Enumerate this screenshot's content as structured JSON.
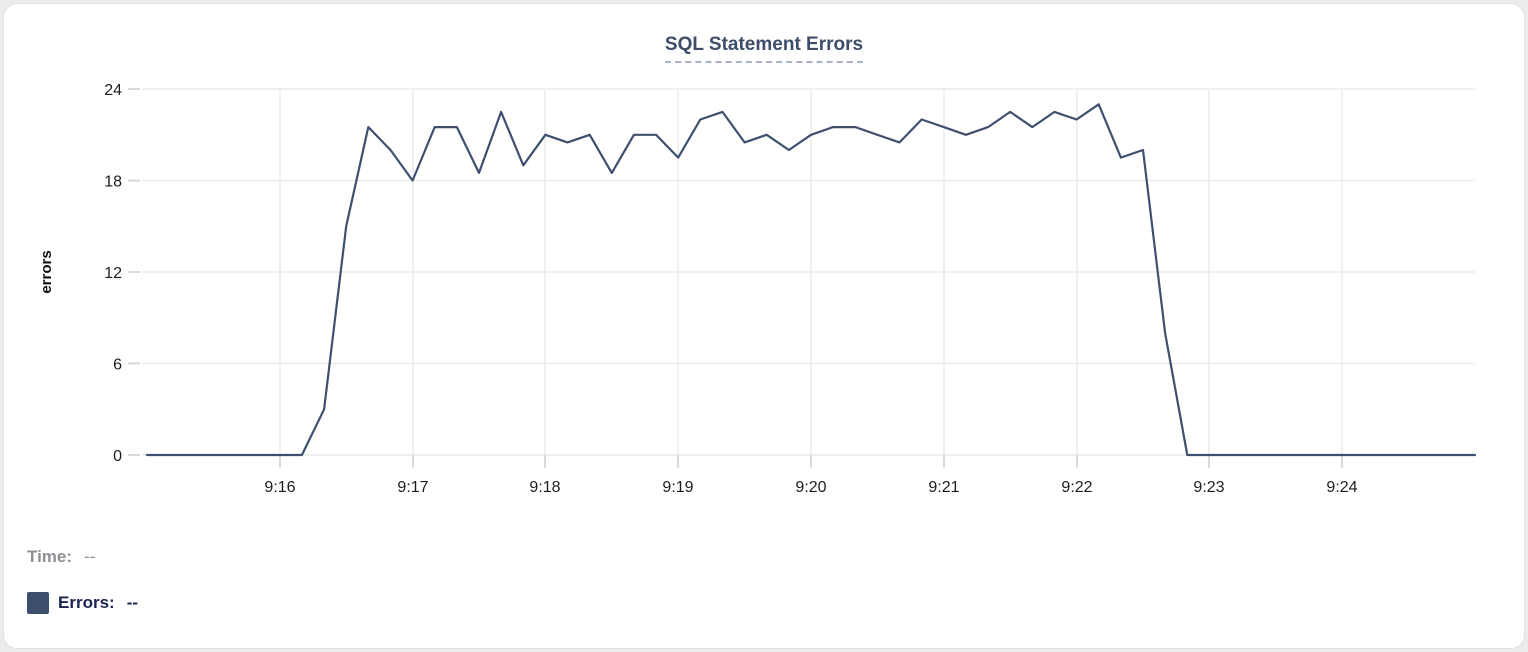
{
  "card": {
    "title": "SQL Statement Errors"
  },
  "chart_data": {
    "type": "line",
    "title": "SQL Statement Errors",
    "xlabel": "",
    "ylabel": "errors",
    "ylim": [
      0,
      24
    ],
    "y_tick_values": [
      0,
      6,
      12,
      18,
      24
    ],
    "y_tick_labels": [
      "0",
      "6",
      "12",
      "18",
      "24"
    ],
    "x_tick_labels": [
      "9:16",
      "9:17",
      "9:18",
      "9:19",
      "9:20",
      "9:21",
      "9:22",
      "9:23",
      "9:24"
    ],
    "x_range": [
      "9:15:00",
      "9:25:00"
    ],
    "point_interval_seconds": 10,
    "grid": true,
    "legend_position": "bottom-left",
    "line_color": "#3f506f",
    "series": [
      {
        "name": "Errors",
        "x": [
          "9:15:00",
          "9:15:10",
          "9:15:20",
          "9:15:30",
          "9:15:40",
          "9:15:50",
          "9:16:00",
          "9:16:10",
          "9:16:20",
          "9:16:30",
          "9:16:40",
          "9:16:50",
          "9:17:00",
          "9:17:10",
          "9:17:20",
          "9:17:30",
          "9:17:40",
          "9:17:50",
          "9:18:00",
          "9:18:10",
          "9:18:20",
          "9:18:30",
          "9:18:40",
          "9:18:50",
          "9:19:00",
          "9:19:10",
          "9:19:20",
          "9:19:30",
          "9:19:40",
          "9:19:50",
          "9:20:00",
          "9:20:10",
          "9:20:20",
          "9:20:30",
          "9:20:40",
          "9:20:50",
          "9:21:00",
          "9:21:10",
          "9:21:20",
          "9:21:30",
          "9:21:40",
          "9:21:50",
          "9:22:00",
          "9:22:10",
          "9:22:20",
          "9:22:30",
          "9:22:40",
          "9:22:50",
          "9:23:00",
          "9:23:10",
          "9:23:20",
          "9:23:30",
          "9:23:40",
          "9:23:50",
          "9:24:00",
          "9:24:10",
          "9:24:20",
          "9:24:30",
          "9:24:40",
          "9:24:50",
          "9:25:00"
        ],
        "values": [
          0,
          0,
          0,
          0,
          0,
          0,
          0,
          0,
          3,
          15,
          21.5,
          20,
          18,
          21.5,
          21.5,
          18.5,
          22.5,
          19,
          21,
          20.5,
          21,
          18.5,
          21,
          21,
          19.5,
          22,
          22.5,
          20.5,
          21,
          20,
          21,
          21.5,
          21.5,
          21,
          20.5,
          22,
          21.5,
          21,
          21.5,
          22.5,
          21.5,
          22.5,
          22,
          23,
          19.5,
          20,
          8,
          0,
          0,
          0,
          0,
          0,
          0,
          0,
          0,
          0,
          0,
          0,
          0,
          0,
          0
        ]
      }
    ]
  },
  "tooltip": {
    "time_label": "Time:",
    "time_value": "--",
    "errors_label": "Errors:",
    "errors_value": "--",
    "swatch_color": "#3e4f6e"
  },
  "colors": {
    "accent": "#3f506f",
    "title_text": "#3d4d6a",
    "underline": "#a8b3c9",
    "grid": "#ececec",
    "axis_tick": "#d9d9d9",
    "axis_text": "#1d1d1f",
    "muted_text": "#8e8e93",
    "dark_text": "#1a2451",
    "card_border": "#e0e0e3"
  }
}
